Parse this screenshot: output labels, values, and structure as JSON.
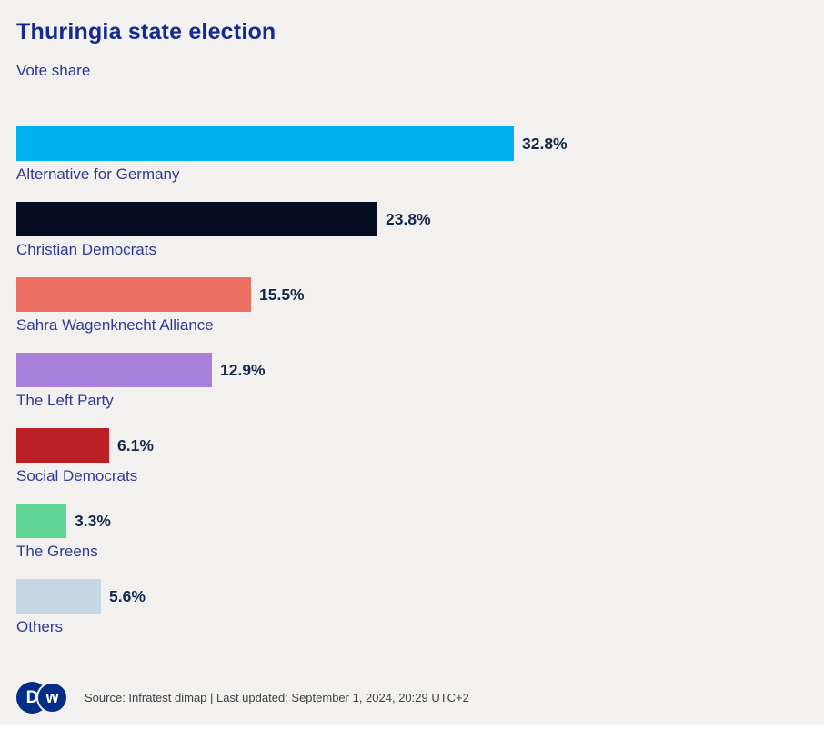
{
  "header": {
    "title": "Thuringia state election",
    "subtitle": "Vote share"
  },
  "chart_data": {
    "type": "bar",
    "orientation": "horizontal",
    "title": "Thuringia state election",
    "subtitle": "Vote share",
    "xlabel": "",
    "ylabel": "",
    "unit": "%",
    "xlim": [
      0,
      32.8
    ],
    "grid": false,
    "legend": false,
    "categories": [
      "Alternative for Germany",
      "Christian Democrats",
      "Sahra Wagenknecht Alliance",
      "The Left Party",
      "Social Democrats",
      "The Greens",
      "Others"
    ],
    "values": [
      32.8,
      23.8,
      15.5,
      12.9,
      6.1,
      3.3,
      5.6
    ],
    "labels": [
      "32.8%",
      "23.8%",
      "15.5%",
      "12.9%",
      "6.1%",
      "3.3%",
      "5.6%"
    ],
    "colors": [
      "#00b1f1",
      "#050d21",
      "#ec6f63",
      "#a981dc",
      "#bb2026",
      "#5ed592",
      "#c5d7e2"
    ]
  },
  "footer": {
    "source": "Source: Infratest dimap | Last updated: September 1, 2024, 20:29 UTC+2",
    "logo": {
      "name": "DW",
      "letters": [
        "D",
        "w"
      ]
    }
  },
  "colors": {
    "background": "#f2f1ef",
    "title": "#15298f",
    "subtitle": "#2b3690",
    "party_label": "#2e3b94",
    "value_label": "#13294b",
    "footer_text": "#3f3f3f",
    "logo_circle": "#032e87"
  }
}
